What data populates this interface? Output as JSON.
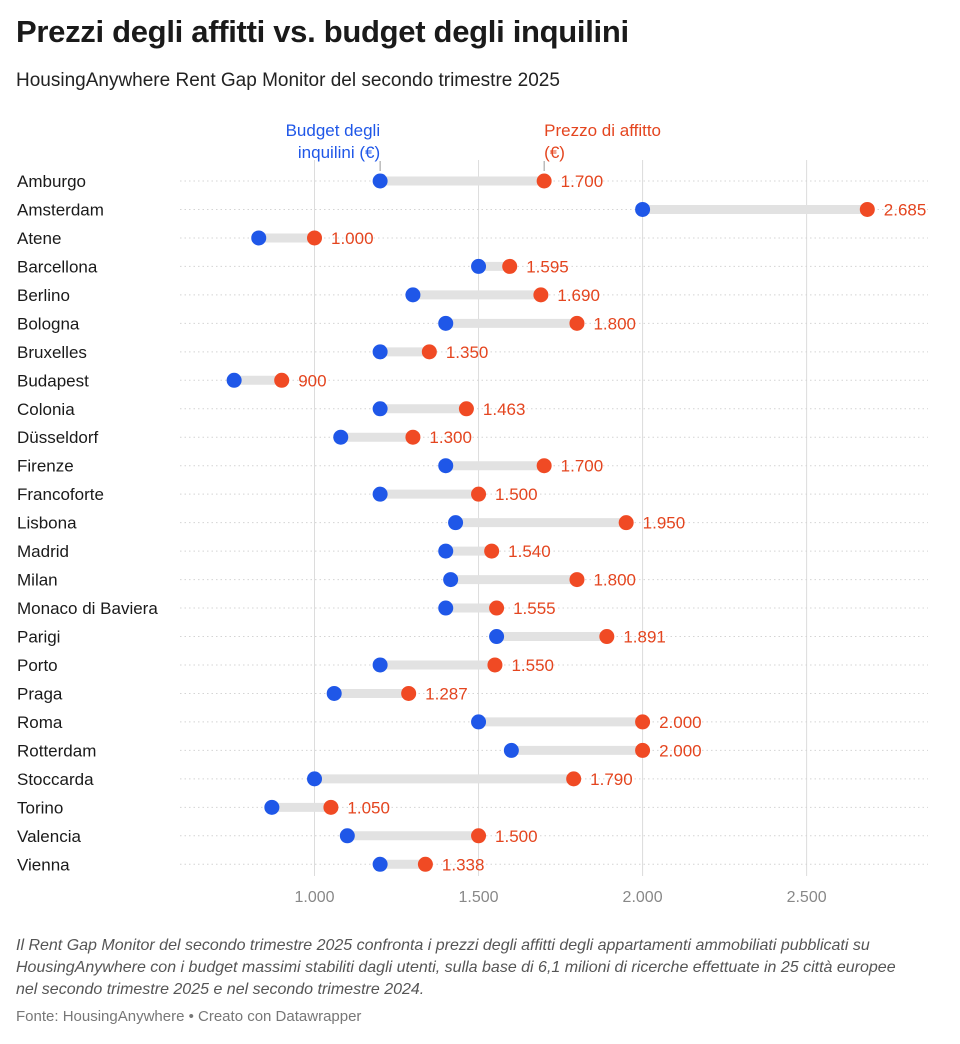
{
  "title": "Prezzi degli affitti vs. budget degli inquilini",
  "subtitle": "HousingAnywhere Rent Gap Monitor del secondo trimestre 2025",
  "notes": "Il Rent Gap Monitor del secondo trimestre 2025 confronta i prezzi degli affitti degli appartamenti ammobiliati pubblicati su HousingAnywhere con i budget massimi stabiliti dagli utenti, sulla base di 6,1 milioni di ricerche effettuate in 25 città europee nel secondo trimestre 2025 e nel secondo trimestre 2024.",
  "source": "Fonte: HousingAnywhere • Creato con Datawrapper",
  "colors": {
    "budget": "#1f57e8",
    "price": "#f04a24",
    "price_label": "#e4451f",
    "connector": "#e2e2e2"
  },
  "chart_data": {
    "type": "dot",
    "series": [
      {
        "name": "Budget degli inquilini (€)",
        "name_lines": [
          "Budget degli",
          "inquilini (€)"
        ],
        "values": [
          1200,
          2000,
          830,
          1500,
          1300,
          1400,
          1200,
          755,
          1200,
          1080,
          1400,
          1200,
          1430,
          1400,
          1415,
          1400,
          1555,
          1200,
          1060,
          1500,
          1600,
          1000,
          870,
          1100,
          1200
        ]
      },
      {
        "name": "Prezzo di affitto (€)",
        "name_lines": [
          "Prezzo di affitto",
          "(€)"
        ],
        "values": [
          1700,
          2685,
          1000,
          1595,
          1690,
          1800,
          1350,
          900,
          1463,
          1300,
          1700,
          1500,
          1950,
          1540,
          1800,
          1555,
          1891,
          1550,
          1287,
          2000,
          2000,
          1790,
          1050,
          1500,
          1338
        ]
      }
    ],
    "categories": [
      "Amburgo",
      "Amsterdam",
      "Atene",
      "Barcellona",
      "Berlino",
      "Bologna",
      "Bruxelles",
      "Budapest",
      "Colonia",
      "Düsseldorf",
      "Firenze",
      "Francoforte",
      "Lisbona",
      "Madrid",
      "Milan",
      "Monaco di Baviera",
      "Parigi",
      "Porto",
      "Praga",
      "Roma",
      "Rotterdam",
      "Stoccarda",
      "Torino",
      "Valencia",
      "Vienna"
    ],
    "value_labels": [
      "1.700",
      "2.685",
      "1.000",
      "1.595",
      "1.690",
      "1.800",
      "1.350",
      "900",
      "1.463",
      "1.300",
      "1.700",
      "1.500",
      "1.950",
      "1.540",
      "1.800",
      "1.555",
      "1.891",
      "1.550",
      "1.287",
      "2.000",
      "2.000",
      "1.790",
      "1.050",
      "1.500",
      "1.338"
    ],
    "xlim": [
      590,
      2870
    ],
    "xticks": [
      1000,
      1500,
      2000,
      2500
    ],
    "xtick_labels": [
      "1.000",
      "1.500",
      "2.000",
      "2.500"
    ],
    "grid": true,
    "xlabel": "",
    "ylabel": ""
  }
}
